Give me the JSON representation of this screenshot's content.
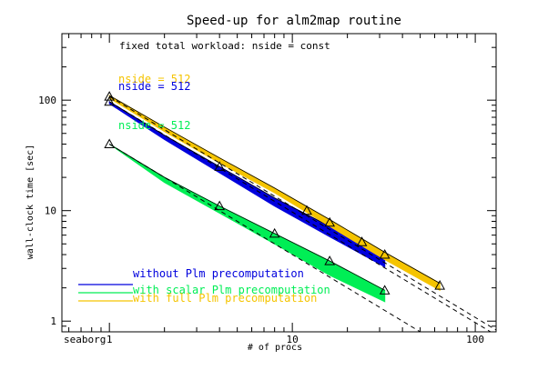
{
  "chart_data": {
    "type": "line",
    "title": "Speed-up for alm2map routine",
    "subtitle": "fixed total workload: nside = const",
    "xlabel": "# of procs",
    "ylabel": "wall-clock time [sec]",
    "corner_label": "seaborg",
    "x_scale": "log",
    "y_scale": "log",
    "xlim": [
      0.55,
      130
    ],
    "ylim": [
      0.8,
      400
    ],
    "x_ticks": [
      "1",
      "10",
      "100"
    ],
    "y_ticks": [
      "1",
      "10",
      "100"
    ],
    "grid": false,
    "legend_position": "bottom-left",
    "annotations": [
      "nside = 512",
      "nside = 512",
      "nside = 512"
    ],
    "series": [
      {
        "name": "without Plm precomputation",
        "color": "#0000dd",
        "x": [
          1,
          2,
          4,
          8,
          16,
          32
        ],
        "upper": [
          97,
          48,
          25,
          13,
          7.2,
          3.9
        ],
        "lower": [
          93,
          44,
          22,
          11,
          5.8,
          3.1
        ]
      },
      {
        "name": "with scalar Plm precomputation",
        "color": "#00ee55",
        "x": [
          1,
          2,
          4,
          8,
          16,
          32
        ],
        "upper": [
          40,
          20,
          11,
          6.2,
          3.5,
          1.9
        ],
        "lower": [
          40,
          18,
          9.5,
          5,
          2.6,
          1.5
        ]
      },
      {
        "name": "with full Plm precomputation",
        "color": "#f5c400",
        "x": [
          1,
          2,
          4,
          8,
          16,
          32,
          64
        ],
        "upper": [
          110,
          57,
          30,
          16,
          8.3,
          4.2,
          2.2
        ],
        "lower": [
          104,
          52,
          27,
          14.5,
          7.2,
          3.6,
          1.9
        ]
      }
    ],
    "measured_points": {
      "x": [
        1,
        1,
        1,
        4,
        12,
        16,
        24,
        32,
        64,
        4,
        8,
        16,
        32
      ],
      "y": [
        108,
        97,
        40,
        25,
        10,
        7.8,
        5.2,
        4,
        2.1,
        11,
        6.2,
        3.5,
        1.9
      ]
    },
    "ideal_scaling_lines": [
      {
        "x": [
          1,
          130
        ],
        "start_y": 108
      },
      {
        "x": [
          1,
          130
        ],
        "start_y": 97
      },
      {
        "x": [
          1,
          130
        ],
        "start_y": 40
      }
    ]
  },
  "legend_marker_colors": {
    "dash_color": "#000000"
  }
}
